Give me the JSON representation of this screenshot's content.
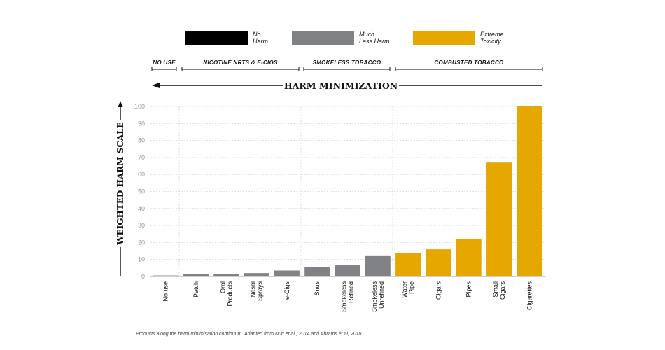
{
  "legend": [
    {
      "label_lines": [
        "No",
        "Harm"
      ],
      "color": "#000000"
    },
    {
      "label_lines": [
        "Much",
        "Less Harm"
      ],
      "color": "#808285"
    },
    {
      "label_lines": [
        "Extreme",
        "Toxicity"
      ],
      "color": "#E6A800"
    }
  ],
  "groups": [
    "NO USE",
    "NICOTINE NRTS & E-CIGS",
    "SMOKELESS TOBACCO",
    "COMBUSTED TOBACCO"
  ],
  "harm_minimization_label": "HARM MINIMIZATION",
  "caption": "Products along the harm minimisation continuum. Adapted from Nutt et al., 2014 and Abrams et al, 2018",
  "chart_data": {
    "type": "bar",
    "title": "",
    "xlabel": "",
    "ylabel": "WEIGHTED HARM SCALE",
    "ylim": [
      0,
      100
    ],
    "yticks": [
      0,
      10,
      20,
      30,
      40,
      50,
      60,
      70,
      80,
      90,
      100
    ],
    "grid": true,
    "categories": [
      [
        "No use"
      ],
      [
        "Patch"
      ],
      [
        "Oral",
        "Products"
      ],
      [
        "Nasal",
        "Sprays"
      ],
      [
        "e-Cigs"
      ],
      [
        "Snus"
      ],
      [
        "Smokeless",
        "Refined"
      ],
      [
        "Smokeless",
        "Unrefined"
      ],
      [
        "Water",
        "Pipe"
      ],
      [
        "Cigars"
      ],
      [
        "Pipes"
      ],
      [
        "Small",
        "Cigars"
      ],
      [
        "Cigarettes"
      ]
    ],
    "values": [
      0.5,
      1.5,
      1.5,
      2,
      3.5,
      5.5,
      7,
      12,
      14,
      16,
      22,
      67,
      100
    ],
    "bar_colors": [
      "#000000",
      "#808285",
      "#808285",
      "#808285",
      "#808285",
      "#808285",
      "#808285",
      "#808285",
      "#E6A800",
      "#E6A800",
      "#E6A800",
      "#E6A800",
      "#E6A800"
    ]
  }
}
